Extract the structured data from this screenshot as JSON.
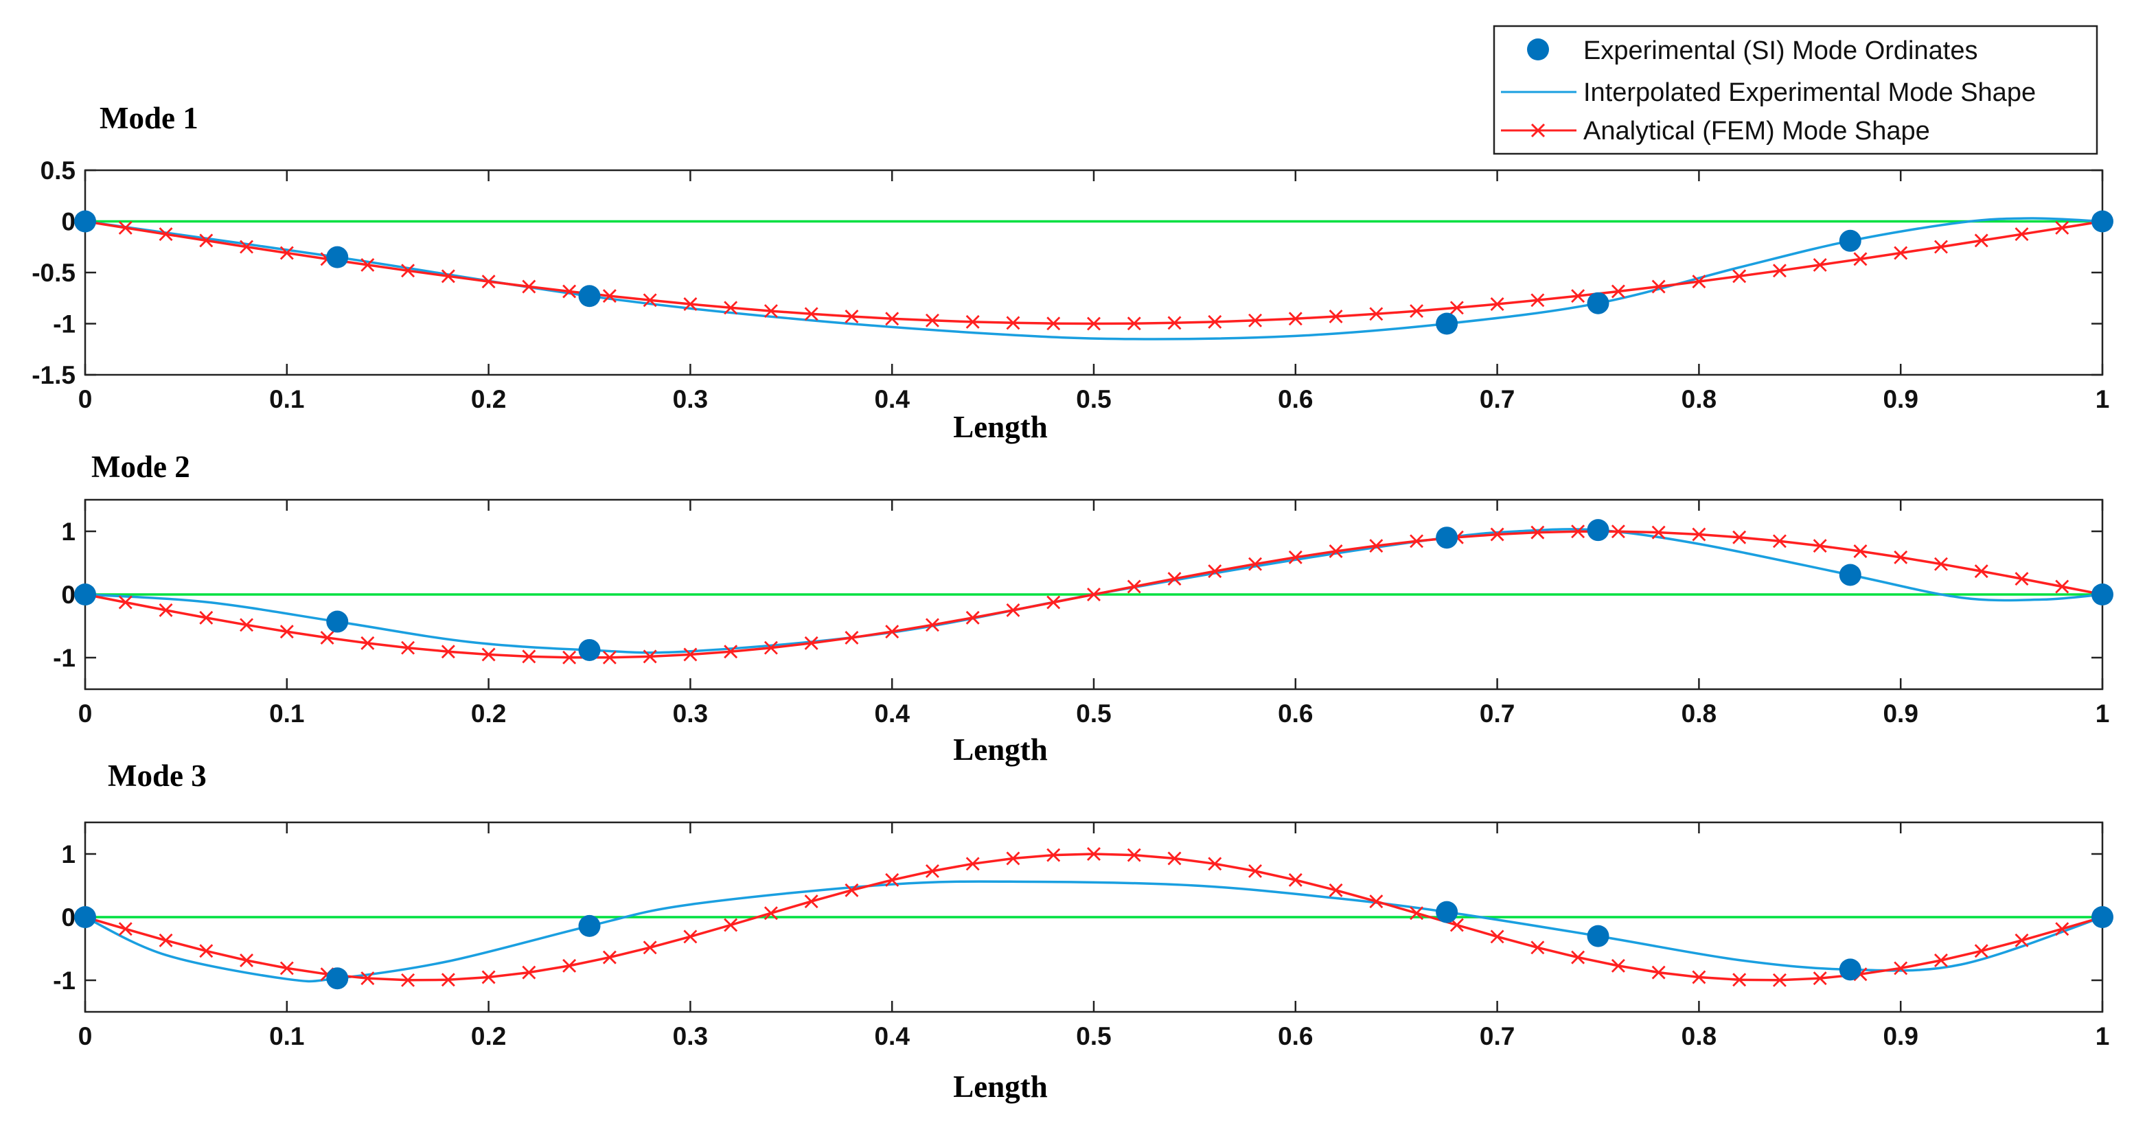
{
  "colors": {
    "experimental": "#0072BD",
    "interpolated": "#1a9fe0",
    "analytical": "#ff2020",
    "zero_line": "#00e040"
  },
  "legend": {
    "entries": [
      "Experimental (SI) Mode Ordinates",
      "Interpolated Experimental Mode Shape",
      "Analytical (FEM) Mode Shape"
    ]
  },
  "chart_data": [
    {
      "type": "line",
      "title": "Mode 1",
      "xlabel": "Length",
      "ylabel": "",
      "xlim": [
        0,
        1
      ],
      "ylim": [
        -1.5,
        0.5
      ],
      "xticks": [
        "0",
        "0.1",
        "0.2",
        "0.3",
        "0.4",
        "0.5",
        "0.6",
        "0.7",
        "0.8",
        "0.9",
        "1"
      ],
      "yticks": [
        "0.5",
        "0",
        "-0.5",
        "-1",
        "-1.5"
      ],
      "ytick_values": [
        0.5,
        0,
        -0.5,
        -1,
        -1.5
      ],
      "series": [
        {
          "name": "Experimental (SI) Mode Ordinates",
          "x": [
            0,
            0.125,
            0.25,
            0.675,
            0.75,
            0.875,
            1
          ],
          "values": [
            0,
            -0.35,
            -0.73,
            -1.0,
            -0.8,
            -0.19,
            0
          ]
        },
        {
          "name": "Interpolated Experimental Mode Shape",
          "x": [
            0,
            0.125,
            0.25,
            0.35,
            0.45,
            0.52,
            0.6,
            0.675,
            0.75,
            0.82,
            0.875,
            0.93,
            0.965,
            1
          ],
          "values": [
            0,
            -0.35,
            -0.73,
            -0.95,
            -1.1,
            -1.15,
            -1.12,
            -1.0,
            -0.8,
            -0.45,
            -0.19,
            -0.01,
            0.03,
            0
          ]
        },
        {
          "name": "Analytical (FEM) Mode Shape",
          "function": "-sin(pi*x)",
          "x_start": 0,
          "x_end": 1,
          "x_step": 0.02
        }
      ]
    },
    {
      "type": "line",
      "title": "Mode 2",
      "xlabel": "Length",
      "ylabel": "",
      "xlim": [
        0,
        1
      ],
      "ylim": [
        -1.5,
        1.5
      ],
      "xticks": [
        "0",
        "0.1",
        "0.2",
        "0.3",
        "0.4",
        "0.5",
        "0.6",
        "0.7",
        "0.8",
        "0.9",
        "1"
      ],
      "yticks": [
        "1",
        "0",
        "-1"
      ],
      "ytick_values": [
        1,
        0,
        -1
      ],
      "series": [
        {
          "name": "Experimental (SI) Mode Ordinates",
          "x": [
            0,
            0.125,
            0.25,
            0.675,
            0.75,
            0.875,
            1
          ],
          "values": [
            0,
            -0.43,
            -0.88,
            0.9,
            1.02,
            0.31,
            0
          ]
        },
        {
          "name": "Interpolated Experimental Mode Shape",
          "x": [
            0,
            0.06,
            0.125,
            0.19,
            0.25,
            0.3,
            0.4,
            0.5,
            0.6,
            0.675,
            0.71,
            0.75,
            0.8,
            0.875,
            0.93,
            0.97,
            1
          ],
          "values": [
            0,
            -0.12,
            -0.43,
            -0.75,
            -0.88,
            -0.9,
            -0.6,
            0.0,
            0.55,
            0.9,
            1.0,
            1.02,
            0.8,
            0.31,
            -0.05,
            -0.08,
            0
          ]
        },
        {
          "name": "Analytical (FEM) Mode Shape",
          "function": "-sin(2*pi*x)",
          "x_start": 0,
          "x_end": 1,
          "x_step": 0.02
        }
      ]
    },
    {
      "type": "line",
      "title": "Mode 3",
      "xlabel": "Length",
      "ylabel": "",
      "xlim": [
        0,
        1
      ],
      "ylim": [
        -1.5,
        1.5
      ],
      "xticks": [
        "0",
        "0.1",
        "0.2",
        "0.3",
        "0.4",
        "0.5",
        "0.6",
        "0.7",
        "0.8",
        "0.9",
        "1"
      ],
      "yticks": [
        "1",
        "0",
        "-1"
      ],
      "ytick_values": [
        1,
        0,
        -1
      ],
      "series": [
        {
          "name": "Experimental (SI) Mode Ordinates",
          "x": [
            0,
            0.125,
            0.25,
            0.675,
            0.75,
            0.875,
            1
          ],
          "values": [
            0,
            -0.97,
            -0.14,
            0.08,
            -0.3,
            -0.83,
            0
          ]
        },
        {
          "name": "Interpolated Experimental Mode Shape",
          "x": [
            0,
            0.04,
            0.1,
            0.125,
            0.18,
            0.25,
            0.3,
            0.4,
            0.47,
            0.55,
            0.62,
            0.675,
            0.75,
            0.82,
            0.875,
            0.93,
            1
          ],
          "values": [
            0,
            -0.6,
            -0.98,
            -0.97,
            -0.7,
            -0.14,
            0.2,
            0.52,
            0.56,
            0.5,
            0.3,
            0.08,
            -0.3,
            -0.68,
            -0.83,
            -0.75,
            0
          ]
        },
        {
          "name": "Analytical (FEM) Mode Shape",
          "function": "-sin(3*pi*x)",
          "x_start": 0,
          "x_end": 1,
          "x_step": 0.02
        }
      ]
    }
  ]
}
